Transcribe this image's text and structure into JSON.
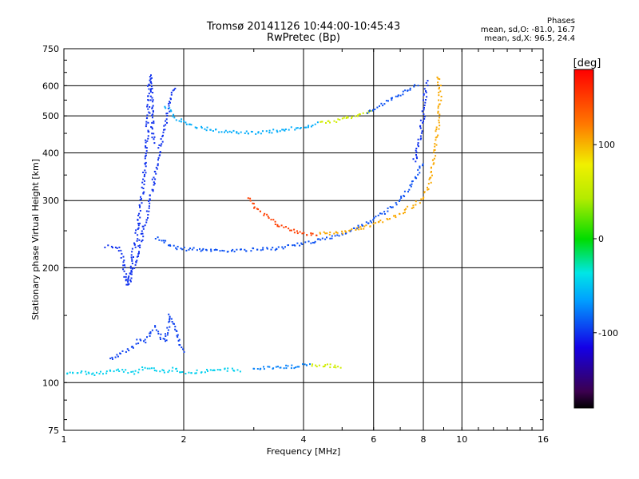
{
  "header": {
    "title_line1": "Tromsø 20141126 10:44:00-10:45:43",
    "title_line2": "RwPretec (Bp)"
  },
  "stats": {
    "heading": "Phases",
    "line_o": "mean, sd,O: -81.0, 16.7",
    "line_x": "mean, sd,X:  96.5, 24.4"
  },
  "colorbar": {
    "label": "[deg]",
    "ticks": [
      {
        "value": 100,
        "label": "100"
      },
      {
        "value": 0,
        "label": "0"
      },
      {
        "value": -100,
        "label": "-100"
      }
    ],
    "range": [
      -180,
      180
    ]
  },
  "chart_data": {
    "type": "scatter",
    "title": "Tromsø 20141126 10:44:00-10:45:43",
    "subtitle": "RwPretec (Bp)",
    "xlabel": "Frequency [MHz]",
    "ylabel": "Stationary phase Virtual Height [km]",
    "xscale": "log",
    "yscale": "log",
    "xlim": [
      1,
      16
    ],
    "ylim": [
      75,
      750
    ],
    "xticks": [
      1,
      2,
      4,
      6,
      8,
      10,
      16
    ],
    "yticks": [
      75,
      100,
      200,
      300,
      400,
      500,
      600,
      750
    ],
    "grid": true,
    "color_scale": "rainbow",
    "color_label": "[deg]",
    "color_range": [
      -180,
      180
    ],
    "series": [
      {
        "phase": -100,
        "x": [
          1.28,
          1.33,
          1.37,
          1.4,
          1.42,
          1.44,
          1.46,
          1.48,
          1.5,
          1.52,
          1.54,
          1.56,
          1.58,
          1.6,
          1.62,
          1.63,
          1.64,
          1.65,
          1.66,
          1.67,
          1.68
        ],
        "y": [
          228,
          227,
          225,
          215,
          195,
          180,
          190,
          210,
          225,
          240,
          260,
          290,
          330,
          380,
          450,
          520,
          600,
          640,
          560,
          470,
          420
        ]
      },
      {
        "phase": -100,
        "x": [
          1.45,
          1.5,
          1.55,
          1.6,
          1.65,
          1.7,
          1.75,
          1.8,
          1.85,
          1.9
        ],
        "y": [
          180,
          200,
          230,
          260,
          300,
          360,
          420,
          480,
          540,
          600
        ]
      },
      {
        "phase": -90,
        "x": [
          1.7,
          1.8,
          1.9,
          2.0,
          2.2,
          2.5,
          2.8,
          3.0,
          3.3,
          3.6,
          4.0,
          4.4,
          4.8,
          5.2,
          5.6,
          6.0,
          6.5,
          7.0,
          7.5,
          8.0
        ],
        "y": [
          240,
          232,
          226,
          224,
          223,
          222,
          222,
          223,
          224,
          227,
          231,
          236,
          242,
          250,
          258,
          268,
          282,
          300,
          330,
          380
        ]
      },
      {
        "phase": -100,
        "x": [
          7.6,
          7.8,
          7.9,
          8.0,
          8.05,
          8.1,
          8.15,
          8.2
        ],
        "y": [
          380,
          420,
          460,
          500,
          540,
          570,
          600,
          620
        ]
      },
      {
        "phase": -60,
        "x": [
          1.8,
          1.9,
          2.0,
          2.1,
          2.2,
          2.4,
          2.6,
          2.8,
          3.0,
          3.3,
          3.6,
          4.0,
          4.4
        ],
        "y": [
          530,
          495,
          480,
          470,
          465,
          458,
          455,
          452,
          452,
          455,
          460,
          468,
          478
        ]
      },
      {
        "phase": 60,
        "x": [
          4.4,
          4.8,
          5.2,
          5.6,
          6.0
        ],
        "y": [
          478,
          486,
          495,
          505,
          518
        ]
      },
      {
        "phase": -90,
        "x": [
          5.8,
          6.2,
          6.6,
          7.0,
          7.4,
          7.8
        ],
        "y": [
          510,
          530,
          550,
          570,
          590,
          610
        ]
      },
      {
        "phase": 150,
        "x": [
          2.9,
          3.0,
          3.2,
          3.4,
          3.6,
          3.8,
          4.0,
          4.2,
          4.4
        ],
        "y": [
          305,
          290,
          275,
          262,
          254,
          249,
          246,
          245,
          245
        ]
      },
      {
        "phase": 105,
        "x": [
          4.4,
          4.8,
          5.2,
          5.6,
          6.0,
          6.5,
          7.0,
          7.5,
          8.0,
          8.3,
          8.5,
          8.6,
          8.7,
          8.75,
          8.8,
          8.8,
          8.75,
          8.7
        ],
        "y": [
          245,
          247,
          250,
          254,
          260,
          268,
          278,
          290,
          305,
          330,
          380,
          420,
          470,
          520,
          560,
          600,
          620,
          640
        ]
      },
      {
        "phase": -45,
        "x": [
          1.0,
          1.1,
          1.2,
          1.3,
          1.4,
          1.5,
          1.6,
          1.7,
          1.8,
          1.9,
          2.0,
          2.2,
          2.4,
          2.6,
          2.8
        ],
        "y": [
          106,
          107,
          105,
          107,
          108,
          106,
          110,
          108,
          107,
          109,
          106,
          107,
          108,
          108,
          107
        ]
      },
      {
        "phase": -95,
        "x": [
          1.3,
          1.4,
          1.5,
          1.55,
          1.6,
          1.65,
          1.7,
          1.75,
          1.8,
          1.85,
          1.9,
          1.95,
          2.0
        ],
        "y": [
          115,
          120,
          125,
          130,
          128,
          135,
          140,
          132,
          128,
          150,
          142,
          125,
          120
        ]
      },
      {
        "phase": -75,
        "x": [
          3.0,
          3.2,
          3.4,
          3.6,
          3.8,
          4.0,
          4.2
        ],
        "y": [
          109,
          109,
          110,
          110,
          110,
          111,
          111
        ]
      },
      {
        "phase": 60,
        "x": [
          4.2,
          4.4,
          4.6,
          4.8,
          5.0
        ],
        "y": [
          111,
          111,
          111,
          110,
          110
        ]
      }
    ]
  }
}
